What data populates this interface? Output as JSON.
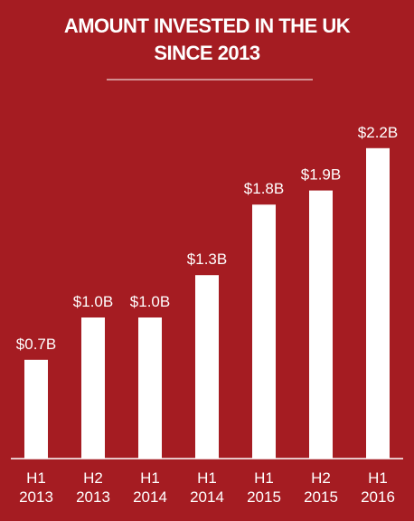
{
  "chart_data": {
    "type": "bar",
    "title": "AMOUNT INVESTED IN THE UK SINCE 2013",
    "categories": [
      "H1 2013",
      "H2 2013",
      "H1 2014",
      "H1 2014",
      "H1 2015",
      "H2 2015",
      "H1 2016"
    ],
    "values": [
      0.7,
      1.0,
      1.0,
      1.3,
      1.8,
      1.9,
      2.2
    ],
    "value_labels": [
      "$0.7B",
      "$1.0B",
      "$1.0B",
      "$1.3B",
      "$1.8B",
      "$1.9B",
      "$2.2B"
    ],
    "color": "#ffffff"
  }
}
